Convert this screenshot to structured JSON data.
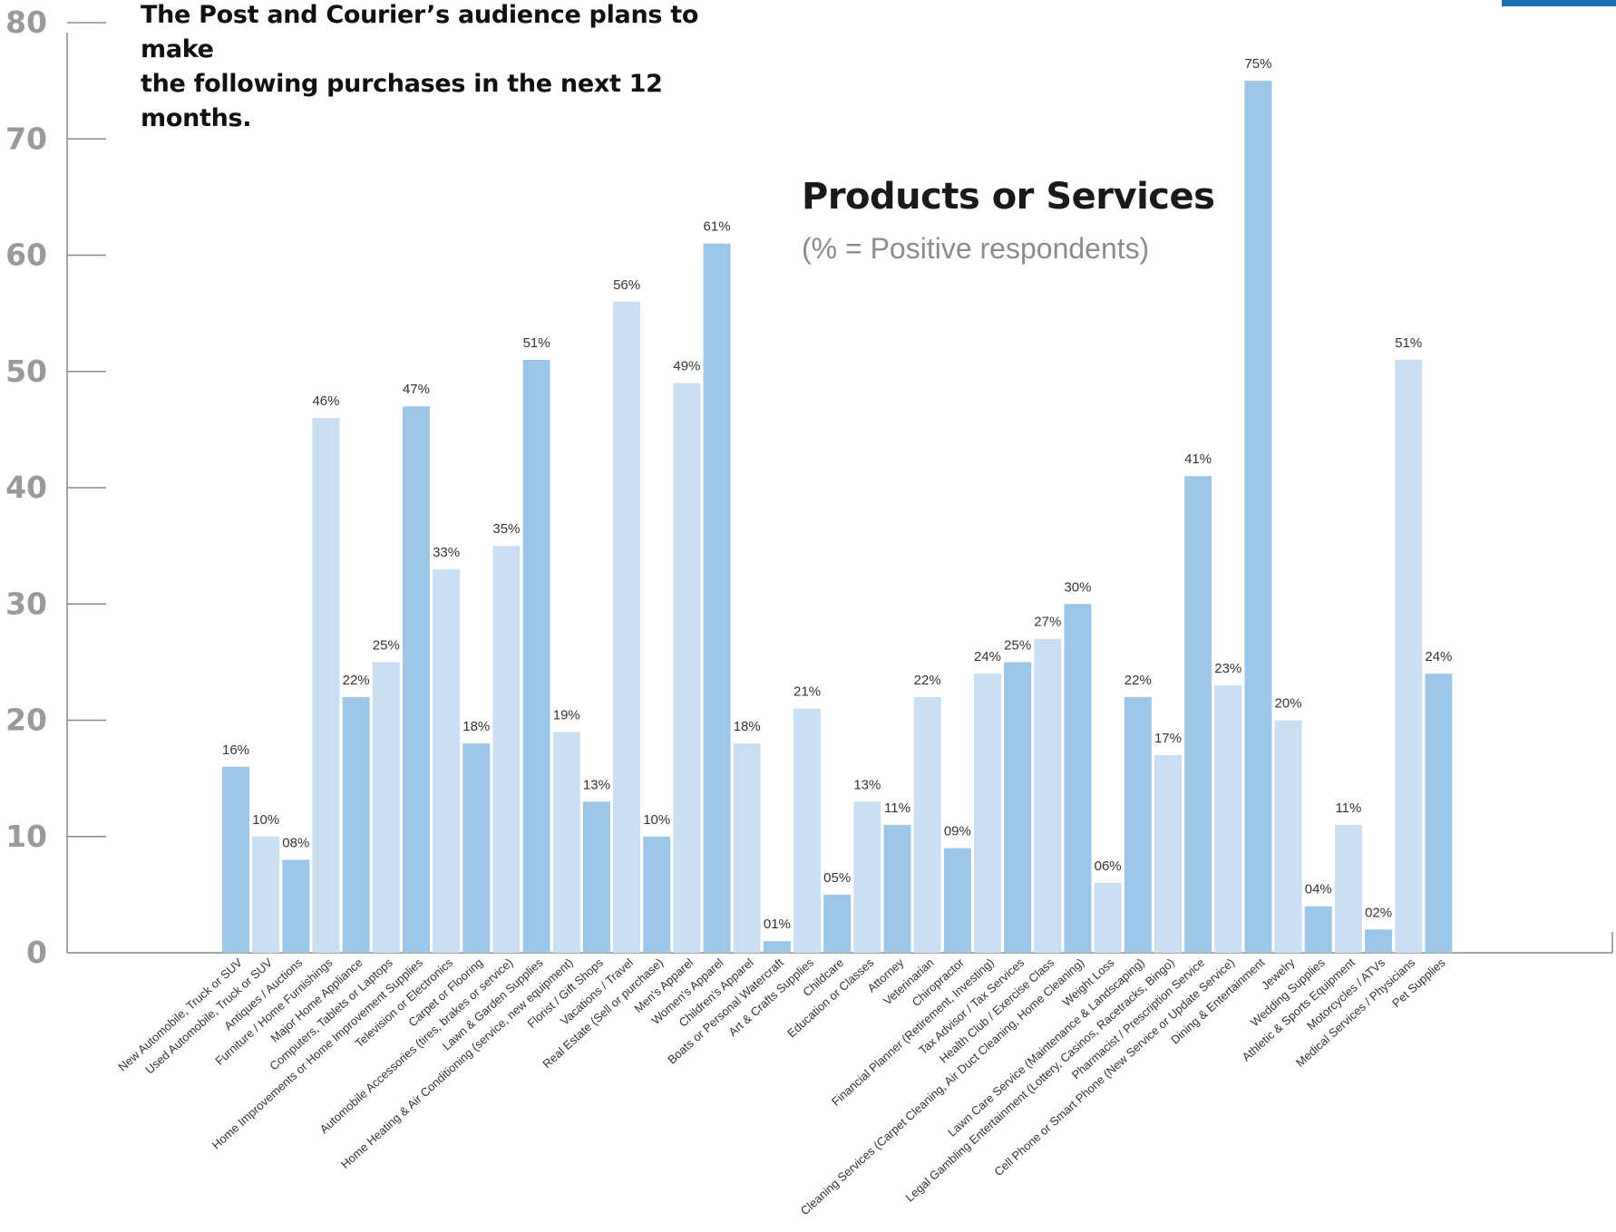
{
  "heading": {
    "line1": "The Post and Courier’s audience plans to make",
    "line2": "the following purchases in the next 12 months."
  },
  "chart_data": {
    "type": "bar",
    "title": "Products or Services",
    "subtitle": "(% = Positive respondents)",
    "xlabel": "",
    "ylabel": "",
    "ylim": [
      0,
      80
    ],
    "yticks": [
      0,
      10,
      20,
      30,
      40,
      50,
      60,
      70,
      80
    ],
    "grid": false,
    "colors": {
      "dark": "#9dc5e5",
      "light": "#cadff1",
      "axis": "#8a8a8a",
      "accent": "#1f6eb4"
    },
    "categories": [
      "New Automobile, Truck or SUV",
      "Used Automobile, Truck or SUV",
      "Antiques / Auctions",
      "Furniture / Home Furnishings",
      "Major Home Appliance",
      "Computers, Tablets or Laptops",
      "Home Improvements or Home Improvement Supplies",
      "Television or Electronics",
      "Carpet or Flooring",
      "Automobile Accessories (tires, brakes or service)",
      "Lawn & Garden Supplies",
      "Home Heating & Air Conditioning (service, new equipment)",
      "Florist / Gift Shops",
      "Vacations / Travel",
      "Real Estate (Sell or purchase)",
      "Men's Apparel",
      "Women's Apparel",
      "Children's Apparel",
      "Boats or Personal Watercraft",
      "Art & Crafts Supplies",
      "Childcare",
      "Education or Classes",
      "Attorney",
      "Veterinarian",
      "Chiropractor",
      "Financial Planner (Retirement, Investing)",
      "Tax Advisor / Tax Services",
      "Health Club / Exercise Class",
      "Cleaning Services (Carpet Cleaning, Air Duct Cleaning, Home Cleaning)",
      "Weight Loss",
      "Lawn Care Service (Maintenance & Landscaping)",
      "Legal Gambling Entertainment (Lottery, Casinos, Racetracks, Bingo)",
      "Pharmacist / Prescription Service",
      "Cell Phone or Smart Phone (New Service or Update Service)",
      "Dining & Entertainment",
      "Jewelry",
      "Wedding Supplies",
      "Athletic & Sports Equipment",
      "Motorcycles / ATVs",
      "Medical Services / Physicians",
      "Pet Supplies"
    ],
    "values": [
      16,
      10,
      8,
      46,
      22,
      25,
      47,
      33,
      18,
      35,
      51,
      19,
      13,
      56,
      10,
      49,
      61,
      18,
      1,
      21,
      5,
      13,
      11,
      22,
      9,
      24,
      25,
      27,
      30,
      6,
      22,
      17,
      41,
      23,
      75,
      20,
      4,
      11,
      2,
      51,
      24
    ],
    "value_labels": [
      "16%",
      "10%",
      "08%",
      "46%",
      "22%",
      "25%",
      "47%",
      "33%",
      "18%",
      "35%",
      "51%",
      "19%",
      "13%",
      "56%",
      "10%",
      "49%",
      "61%",
      "18%",
      "01%",
      "21%",
      "05%",
      "13%",
      "11%",
      "22%",
      "09%",
      "24%",
      "25%",
      "27%",
      "30%",
      "06%",
      "22%",
      "17%",
      "41%",
      "23%",
      "75%",
      "20%",
      "04%",
      "11%",
      "02%",
      "51%",
      "24%"
    ],
    "shade": [
      "dark",
      "light",
      "dark",
      "light",
      "dark",
      "light",
      "dark",
      "light",
      "dark",
      "light",
      "dark",
      "light",
      "dark",
      "light",
      "dark",
      "light",
      "dark",
      "light",
      "dark",
      "light",
      "dark",
      "light",
      "dark",
      "light",
      "dark",
      "light",
      "dark",
      "light",
      "dark",
      "light",
      "dark",
      "light",
      "dark",
      "light",
      "dark",
      "light",
      "dark",
      "light",
      "dark",
      "light",
      "dark"
    ]
  }
}
